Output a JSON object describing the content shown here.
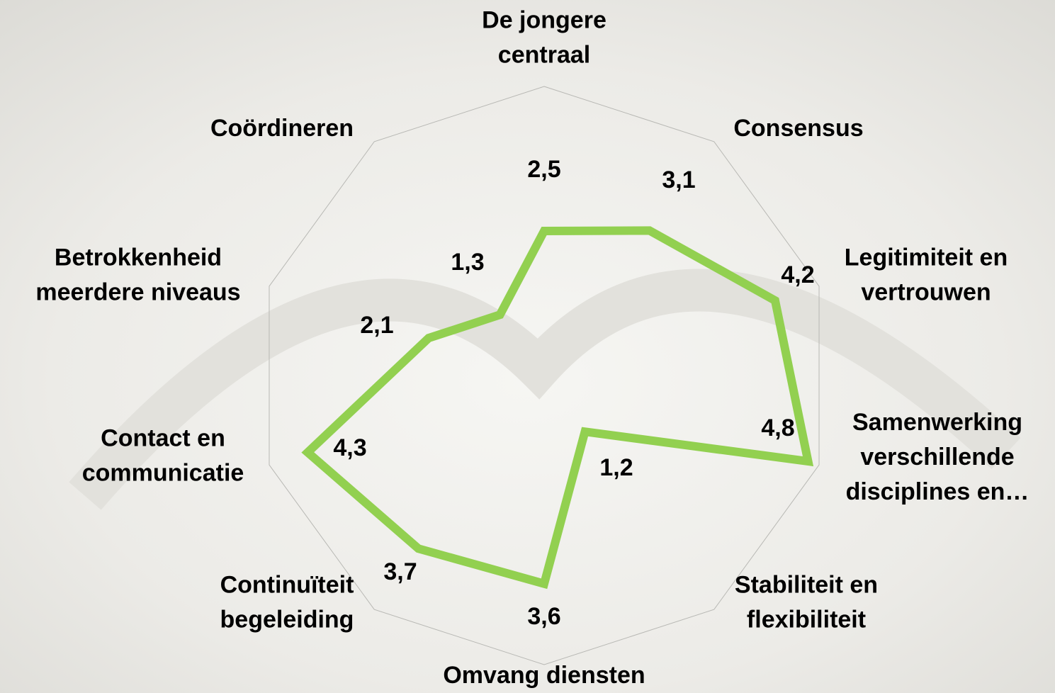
{
  "chart_data": {
    "type": "radar",
    "categories": [
      "De jongere centraal",
      "Consensus",
      "Legitimiteit en vertrouwen",
      "Samenwerking verschillende disciplines en…",
      "Stabiliteit en flexibiliteit",
      "Omvang diensten",
      "Continuïteit begeleiding",
      "Contact en communicatie",
      "Betrokkenheid meerdere niveaus",
      "Coördineren"
    ],
    "values": [
      2.5,
      3.1,
      4.2,
      4.8,
      1.2,
      3.6,
      3.7,
      4.3,
      2.1,
      1.3
    ],
    "value_labels": [
      "2,5",
      "3,1",
      "4,2",
      "4,8",
      "1,2",
      "3,6",
      "3,7",
      "4,3",
      "2,1",
      "1,3"
    ],
    "color": "#92d050",
    "ylim": [
      0,
      5
    ]
  }
}
